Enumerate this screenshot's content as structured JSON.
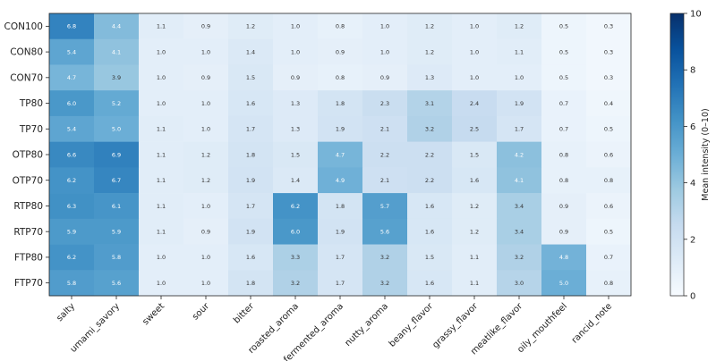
{
  "chart_data": {
    "type": "heatmap",
    "title": "",
    "rows": [
      "CON100",
      "CON80",
      "CON70",
      "TP80",
      "TP70",
      "OTP80",
      "OTP70",
      "RTP80",
      "RTP70",
      "FTP80",
      "FTP70"
    ],
    "columns": [
      "salty",
      "umami_savory",
      "sweet",
      "sour",
      "bitter",
      "roasted_aroma",
      "fermented_aroma",
      "nutty_aroma",
      "beany_flavor",
      "grassy_flavor",
      "meatlike_flavor",
      "oily_mouthfeel",
      "rancid_note"
    ],
    "values": [
      [
        6.8,
        4.4,
        1.1,
        0.9,
        1.2,
        1.0,
        0.8,
        1.0,
        1.2,
        1.0,
        1.2,
        0.5,
        0.3
      ],
      [
        5.4,
        4.1,
        1.0,
        1.0,
        1.4,
        1.0,
        0.9,
        1.0,
        1.2,
        1.0,
        1.1,
        0.5,
        0.3
      ],
      [
        4.7,
        3.9,
        1.0,
        0.9,
        1.5,
        0.9,
        0.8,
        0.9,
        1.3,
        1.0,
        1.0,
        0.5,
        0.3
      ],
      [
        6.0,
        5.2,
        1.0,
        1.0,
        1.6,
        1.3,
        1.8,
        2.3,
        3.1,
        2.4,
        1.9,
        0.7,
        0.4
      ],
      [
        5.4,
        5.0,
        1.1,
        1.0,
        1.7,
        1.3,
        1.9,
        2.1,
        3.2,
        2.5,
        1.7,
        0.7,
        0.5
      ],
      [
        6.6,
        6.9,
        1.1,
        1.2,
        1.8,
        1.5,
        4.7,
        2.2,
        2.2,
        1.5,
        4.2,
        0.8,
        0.6
      ],
      [
        6.2,
        6.7,
        1.1,
        1.2,
        1.9,
        1.4,
        4.9,
        2.1,
        2.2,
        1.6,
        4.1,
        0.8,
        0.8
      ],
      [
        6.3,
        6.1,
        1.1,
        1.0,
        1.7,
        6.2,
        1.8,
        5.7,
        1.6,
        1.2,
        3.4,
        0.9,
        0.6
      ],
      [
        5.9,
        5.9,
        1.1,
        0.9,
        1.9,
        6.0,
        1.9,
        5.6,
        1.6,
        1.2,
        3.4,
        0.9,
        0.5
      ],
      [
        6.2,
        5.8,
        1.0,
        1.0,
        1.6,
        3.3,
        1.7,
        3.2,
        1.5,
        1.1,
        3.2,
        4.8,
        0.7
      ],
      [
        5.8,
        5.6,
        1.0,
        1.0,
        1.8,
        3.2,
        1.7,
        3.2,
        1.6,
        1.1,
        3.0,
        5.0,
        0.8
      ]
    ],
    "colorbar": {
      "label": "Mean intensity (0–10)",
      "range": [
        0,
        10
      ],
      "ticks": [
        0,
        2,
        4,
        6,
        8,
        10
      ],
      "colormap": "Blues",
      "color_low": "#f7fbff",
      "color_high": "#08306b"
    },
    "grid": false,
    "show_cell_values": true
  }
}
